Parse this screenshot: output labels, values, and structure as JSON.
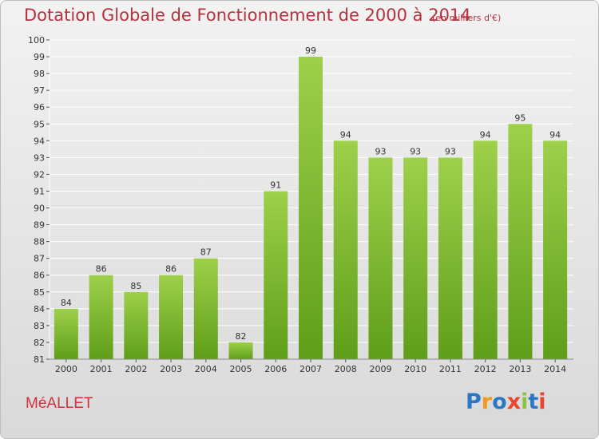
{
  "title": "Dotation Globale de Fonctionnement de 2000 à 2014",
  "subtitle": "(en milliers d'€)",
  "place_name": "MéALLET",
  "logo": {
    "letters": [
      "P",
      "r",
      "o",
      "x",
      "i",
      "t",
      "i"
    ],
    "colors": [
      "#2b78c2",
      "#f39a1d",
      "#2b78c2",
      "#e8452c",
      "#8bc53f",
      "#2b78c2",
      "#e8452c"
    ]
  },
  "colors": {
    "bar_top": "#9ed04a",
    "bar_bottom": "#5f9e1a",
    "title": "#b4323f",
    "grid": "#ffffff"
  },
  "chart_data": {
    "type": "bar",
    "categories": [
      "2000",
      "2001",
      "2002",
      "2003",
      "2004",
      "2005",
      "2006",
      "2007",
      "2008",
      "2009",
      "2010",
      "2011",
      "2012",
      "2013",
      "2014"
    ],
    "values": [
      84,
      86,
      85,
      86,
      87,
      82,
      91,
      99,
      94,
      93,
      93,
      93,
      94,
      95,
      94
    ],
    "title": "Dotation Globale de Fonctionnement de 2000 à 2014",
    "ylim": [
      81,
      100
    ],
    "yticks": [
      81,
      82,
      83,
      84,
      85,
      86,
      87,
      88,
      89,
      90,
      91,
      92,
      93,
      94,
      95,
      96,
      97,
      98,
      99,
      100
    ],
    "grid": true
  }
}
